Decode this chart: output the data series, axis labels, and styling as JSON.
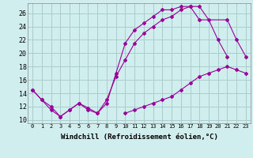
{
  "background_color": "#d0eeee",
  "line_color": "#990099",
  "grid_color": "#aacccc",
  "xlabel": "Windchill (Refroidissement éolien,°C)",
  "xlabel_fontsize": 6.5,
  "xtick_labels": [
    "0",
    "1",
    "2",
    "3",
    "4",
    "5",
    "6",
    "7",
    "8",
    "9",
    "10",
    "11",
    "12",
    "13",
    "14",
    "15",
    "16",
    "17",
    "18",
    "19",
    "20",
    "21",
    "22",
    "23"
  ],
  "ytick_labels": [
    "10",
    "12",
    "14",
    "16",
    "18",
    "20",
    "22",
    "24",
    "26"
  ],
  "ylim": [
    9.5,
    27.5
  ],
  "xlim": [
    -0.5,
    23.5
  ],
  "series": [
    {
      "x": [
        0,
        1,
        2,
        3,
        4,
        5,
        6,
        7,
        8,
        9,
        10,
        11,
        12,
        13,
        14,
        15,
        16,
        17,
        18,
        19,
        20,
        21
      ],
      "y": [
        14.5,
        13.0,
        11.5,
        10.5,
        11.5,
        12.5,
        11.5,
        11.0,
        12.5,
        17.0,
        21.5,
        23.5,
        24.5,
        25.5,
        26.5,
        26.5,
        27.0,
        27.0,
        27.0,
        25.0,
        22.0,
        19.5
      ]
    },
    {
      "x": [
        0,
        1,
        2,
        3,
        4,
        5,
        6,
        7,
        8,
        9,
        10,
        11,
        12,
        13,
        14,
        15,
        16,
        17,
        18,
        21,
        22,
        23
      ],
      "y": [
        14.5,
        13.0,
        12.0,
        10.5,
        11.5,
        12.5,
        11.8,
        11.0,
        13.0,
        16.5,
        19.0,
        21.5,
        23.0,
        24.0,
        25.0,
        25.5,
        26.5,
        27.0,
        25.0,
        25.0,
        22.0,
        19.5
      ]
    },
    {
      "x": [
        10,
        11,
        12,
        13,
        14,
        15,
        16,
        17,
        18,
        19,
        20,
        21,
        22,
        23
      ],
      "y": [
        11.0,
        11.5,
        12.0,
        12.5,
        13.0,
        13.5,
        14.5,
        15.5,
        16.5,
        17.0,
        17.5,
        18.0,
        17.5,
        17.0
      ]
    }
  ]
}
